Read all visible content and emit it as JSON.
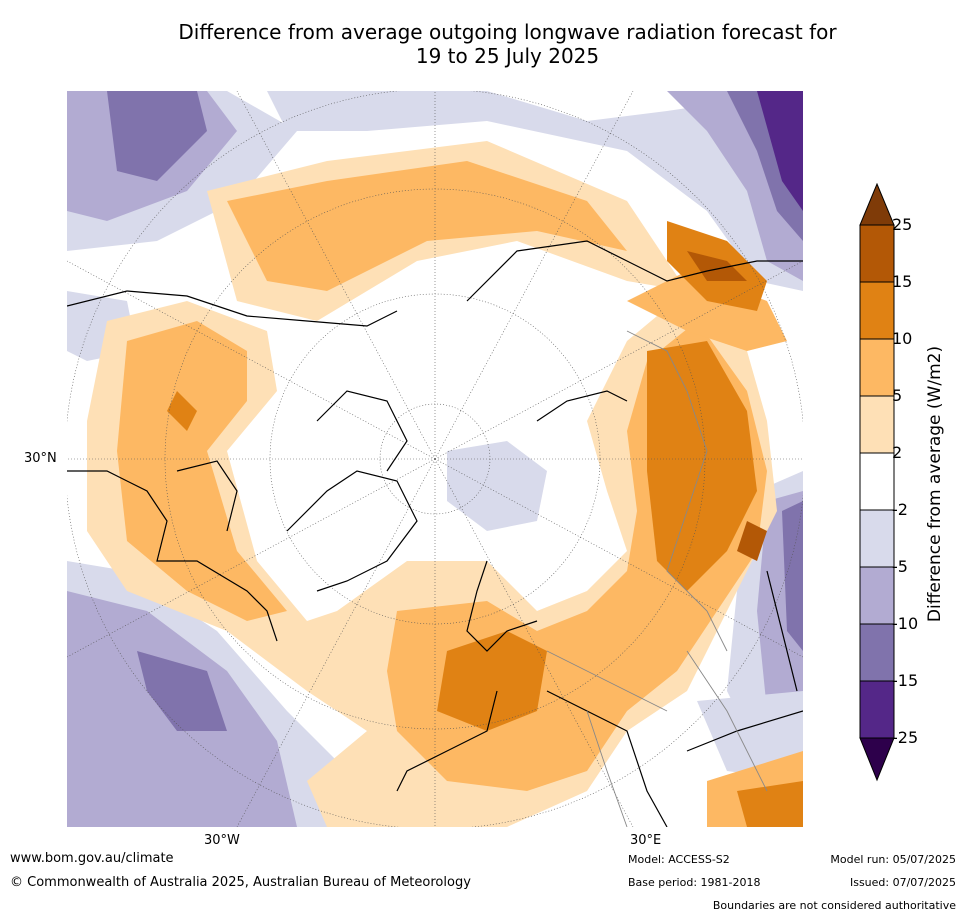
{
  "title": {
    "line1": "Difference from average outgoing longwave radiation forecast for",
    "line2": "19 to 25 July 2025"
  },
  "map": {
    "projection": "north-polar-stereographic",
    "labels": {
      "lat_30n": "30°N",
      "lon_30w": "30°W",
      "lon_30e": "30°E"
    }
  },
  "colorbar": {
    "title": "Difference from average (W/m2)",
    "ticks": [
      "25",
      "15",
      "10",
      "5",
      "2",
      "-2",
      "-5",
      "-10",
      "-15",
      "-25"
    ],
    "colors": {
      "gt_25": "#7f3b08",
      "15_25": "#b35806",
      "10_15": "#e08214",
      "5_10": "#fdb863",
      "2_5": "#fee0b6",
      "neg2_2": "#ffffff",
      "neg5_neg2": "#d8daeb",
      "neg10_neg5": "#b2abd2",
      "neg15_neg10": "#8073ac",
      "neg25_neg15": "#542788",
      "lt_neg25": "#2d004b"
    }
  },
  "footer": {
    "website": "www.bom.gov.au/climate",
    "copyright": "© Commonwealth of Australia 2025, Australian Bureau of Meteorology",
    "model": "Model: ACCESS-S2",
    "base_period": "Base period: 1981-2018",
    "model_run": "Model run: 05/07/2025",
    "issued": "Issued: 07/07/2025",
    "disclaimer": "Boundaries are not considered authoritative"
  }
}
